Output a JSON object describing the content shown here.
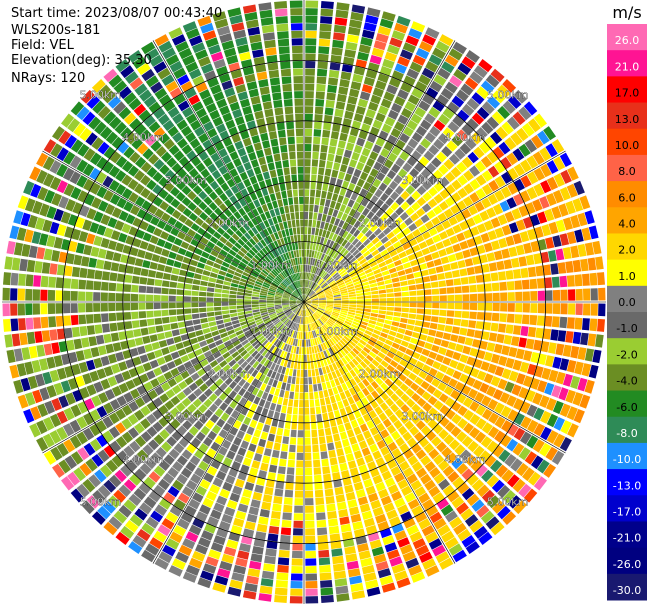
{
  "header": {
    "start_time": "Start time: 2023/08/07 00:43:40",
    "instrument": "WLS200s-181",
    "field": "Field: VEL",
    "elevation": "Elevation(deg): 35.30",
    "nrays": "NRays: 120"
  },
  "chart_data": {
    "type": "heatmap",
    "subtype": "polar-ppi",
    "field": "VEL",
    "unit": "m/s",
    "nrays": 120,
    "range_rings_km": [
      1.0,
      2.0,
      3.0,
      4.0
    ],
    "range_labels_km": [
      "1.00km",
      "2.00km",
      "3.00km",
      "4.00km",
      "5.00km"
    ],
    "max_range_km": 5.0,
    "colorbar": {
      "title": "m/s",
      "tick_labels": [
        "26.0",
        "21.0",
        "17.0",
        "13.0",
        "10.0",
        "8.0",
        "6.0",
        "4.0",
        "2.0",
        "1.0",
        "0.0",
        "-1.0",
        "-2.0",
        "-4.0",
        "-6.0",
        "-8.0",
        "-10.0",
        "-13.0",
        "-17.0",
        "-21.0",
        "-26.0",
        "-30.0"
      ],
      "colors": [
        "#ff69b4",
        "#ff1493",
        "#ff0000",
        "#e8301a",
        "#ff4500",
        "#ff6347",
        "#ff8c00",
        "#ffa500",
        "#ffd700",
        "#ffff00",
        "#808080",
        "#696969",
        "#9acd32",
        "#6b8e23",
        "#228b22",
        "#2e8b57",
        "#1e90ff",
        "#0000ff",
        "#0000cd",
        "#00008b",
        "#000080",
        "#191970"
      ]
    },
    "sector_pattern": {
      "description_values": "Approximate dominant velocity per azimuth band (deg, m/s)",
      "azimuth_deg": [
        0,
        30,
        60,
        90,
        120,
        150,
        180,
        210,
        240,
        270,
        300,
        330
      ],
      "inner_velocity": [
        -2.0,
        -1.0,
        2.0,
        2.0,
        2.0,
        2.0,
        2.0,
        0.0,
        -1.0,
        -2.0,
        -4.0,
        -6.0
      ],
      "outer_velocity": [
        -4.0,
        -2.0,
        4.0,
        6.0,
        6.0,
        4.0,
        2.0,
        0.0,
        -2.0,
        -2.0,
        -4.0,
        -6.0
      ]
    }
  }
}
